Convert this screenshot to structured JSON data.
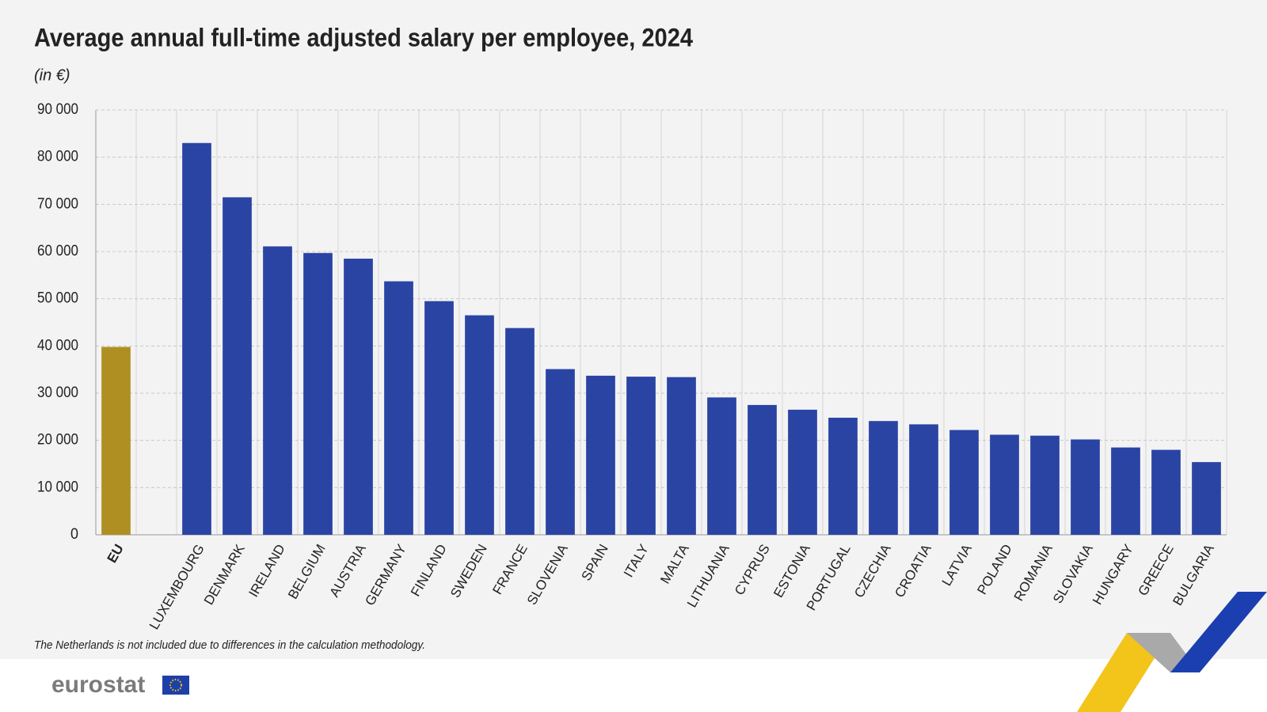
{
  "chart_data": {
    "type": "bar",
    "title": "Average annual full-time adjusted salary per employee, 2024",
    "subtitle": "(in €)",
    "note": "The Netherlands is not included due to differences in the calculation methodology.",
    "categories": [
      "EU",
      null,
      "LUXEMBOURG",
      "DENMARK",
      "IRELAND",
      "BELGIUM",
      "AUSTRIA",
      "GERMANY",
      "FINLAND",
      "SWEDEN",
      "FRANCE",
      "SLOVENIA",
      "SPAIN",
      "ITALY",
      "MALTA",
      "LITHUANIA",
      "CYPRUS",
      "ESTONIA",
      "PORTUGAL",
      "CZECHIA",
      "CROATIA",
      "LATVIA",
      "POLAND",
      "ROMANIA",
      "SLOVAKIA",
      "HUNGARY",
      "GREECE",
      "BULGARIA"
    ],
    "values": [
      39800,
      null,
      83000,
      71500,
      61100,
      59700,
      58500,
      53700,
      49500,
      46500,
      43800,
      35100,
      33700,
      33500,
      33400,
      29100,
      27500,
      26500,
      24800,
      24100,
      23400,
      22200,
      21200,
      21000,
      20200,
      18500,
      18000,
      15400
    ],
    "colors": [
      "#b08f22",
      null,
      "#2a44a4",
      "#2a44a4",
      "#2a44a4",
      "#2a44a4",
      "#2a44a4",
      "#2a44a4",
      "#2a44a4",
      "#2a44a4",
      "#2a44a4",
      "#2a44a4",
      "#2a44a4",
      "#2a44a4",
      "#2a44a4",
      "#2a44a4",
      "#2a44a4",
      "#2a44a4",
      "#2a44a4",
      "#2a44a4",
      "#2a44a4",
      "#2a44a4",
      "#2a44a4",
      "#2a44a4",
      "#2a44a4",
      "#2a44a4",
      "#2a44a4",
      "#2a44a4"
    ],
    "ylim": [
      0,
      90000
    ],
    "yticks": [
      0,
      {
        "value": 10000,
        "label": "10 000"
      },
      {
        "value": 20000,
        "label": "20 000"
      },
      {
        "value": 30000,
        "label": "30 000"
      },
      {
        "value": 40000,
        "label": "40 000"
      },
      {
        "value": 50000,
        "label": "50 000"
      },
      {
        "value": 60000,
        "label": "60 000"
      },
      {
        "value": 70000,
        "label": "70 000"
      },
      {
        "value": 80000,
        "label": "80 000"
      },
      {
        "value": 90000,
        "label": "90 000"
      }
    ],
    "grid": true
  },
  "logo": "eurostat"
}
